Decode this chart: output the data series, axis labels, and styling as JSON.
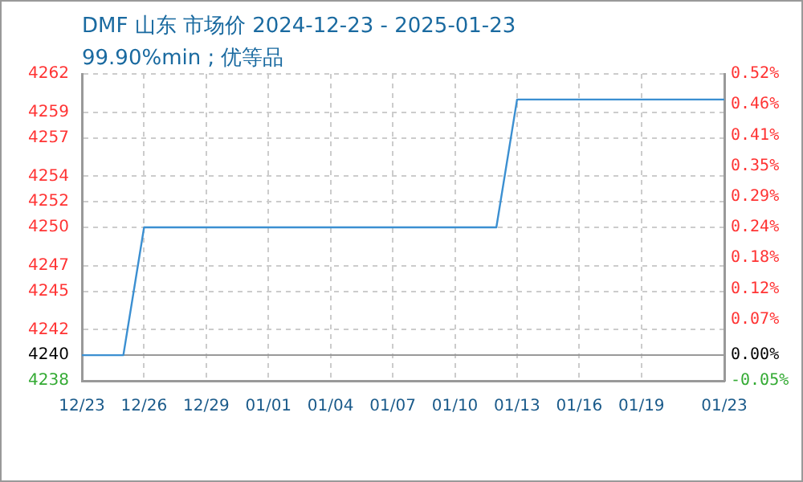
{
  "chart_data": {
    "type": "line",
    "title": "DMF 山东 市场价 2024-12-23 - 2025-01-23",
    "subtitle": "99.90%min ; 优等品",
    "x": [
      "2024-12-23",
      "2024-12-25",
      "2024-12-26",
      "2025-01-12",
      "2025-01-13",
      "2025-01-23"
    ],
    "series": [
      {
        "color": "#3b8fd1",
        "values": [
          4240,
          4240,
          4250,
          4250,
          4260,
          4260
        ]
      }
    ],
    "xlim": [
      "2024-12-23",
      "2025-01-23"
    ],
    "xticks": [
      {
        "value": "2024-12-23",
        "label": "12/23"
      },
      {
        "value": "2024-12-26",
        "label": "12/26"
      },
      {
        "value": "2024-12-29",
        "label": "12/29"
      },
      {
        "value": "2025-01-01",
        "label": "01/01"
      },
      {
        "value": "2025-01-04",
        "label": "01/04"
      },
      {
        "value": "2025-01-07",
        "label": "01/07"
      },
      {
        "value": "2025-01-10",
        "label": "01/10"
      },
      {
        "value": "2025-01-13",
        "label": "01/13"
      },
      {
        "value": "2025-01-16",
        "label": "01/16"
      },
      {
        "value": "2025-01-19",
        "label": "01/19"
      },
      {
        "value": "2025-01-23",
        "label": "01/23"
      }
    ],
    "ylim": [
      4238,
      4262
    ],
    "yticks": [
      4238,
      4240,
      4242,
      4245,
      4247,
      4250,
      4252,
      4254,
      4257,
      4259,
      4262
    ],
    "y2lim": [
      -0.0472,
      0.5189
    ],
    "y2ticks": [
      {
        "value": -0.0472,
        "label": "-0.05%"
      },
      {
        "value": 0,
        "label": "0.00%"
      },
      {
        "value": 0.066,
        "label": "0.07%"
      },
      {
        "value": 0.1226,
        "label": "0.12%"
      },
      {
        "value": 0.1792,
        "label": "0.18%"
      },
      {
        "value": 0.2358,
        "label": "0.24%"
      },
      {
        "value": 0.2925,
        "label": "0.29%"
      },
      {
        "value": 0.3491,
        "label": "0.35%"
      },
      {
        "value": 0.4057,
        "label": "0.41%"
      },
      {
        "value": 0.4623,
        "label": "0.46%"
      },
      {
        "value": 0.5189,
        "label": "0.52%"
      }
    ],
    "grid": true,
    "legend": false,
    "marker": "none",
    "line_style": "solid"
  }
}
